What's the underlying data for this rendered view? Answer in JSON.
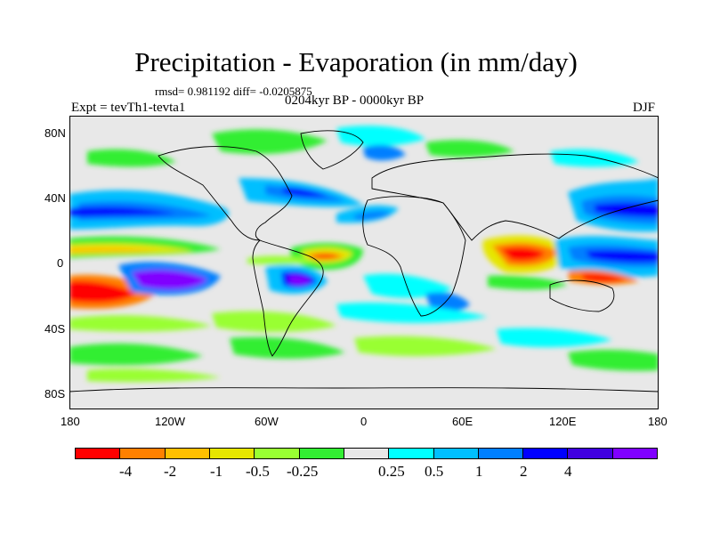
{
  "title": "Precipitation - Evaporation (in mm/day)",
  "stats": "rmsd= 0.981192 diff= -0.0205875",
  "period": "0204kyr BP - 0000kyr BP",
  "experiment": "Expt = tevTh1-tevta1",
  "season": "DJF",
  "axes": {
    "lat_labels": [
      "80N",
      "40N",
      "0",
      "40S",
      "80S"
    ],
    "lon_labels": [
      "180",
      "120W",
      "60W",
      "0",
      "60E",
      "120E",
      "180"
    ]
  },
  "colorbar": {
    "colors": [
      "#ff0000",
      "#ff8000",
      "#ffbf00",
      "#e6e600",
      "#99ff33",
      "#33ee33",
      "#e8e8e8",
      "#00ffff",
      "#00bfff",
      "#007fff",
      "#0000ff",
      "#4000e0",
      "#8000ff"
    ],
    "labels": [
      "-4",
      "-2",
      "-1",
      "-0.5",
      "-0.25",
      "0.25",
      "0.5",
      "1",
      "2",
      "4"
    ]
  }
}
